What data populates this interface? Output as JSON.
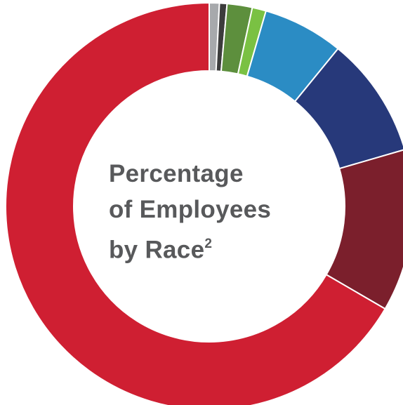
{
  "chart_data": {
    "type": "pie",
    "style": "donut",
    "title_lines": [
      "Percentage",
      "of Employees",
      "by Race"
    ],
    "title_superscript": "2",
    "start_angle_deg": 0,
    "direction": "clockwise",
    "segments": [
      {
        "value": 0.8,
        "color": "#a7a9ac"
      },
      {
        "value": 0.6,
        "color": "#3c3c3c"
      },
      {
        "value": 2.0,
        "color": "#5d8f3d"
      },
      {
        "value": 1.1,
        "color": "#7ac143"
      },
      {
        "value": 6.4,
        "color": "#2b8cc4"
      },
      {
        "value": 9.6,
        "color": "#27397a"
      },
      {
        "value": 12.9,
        "color": "#7b1f2c"
      },
      {
        "value": 66.6,
        "color": "#cf1f32"
      }
    ]
  },
  "colors": {
    "separator": "#ffffff",
    "title_text": "#58595b"
  }
}
